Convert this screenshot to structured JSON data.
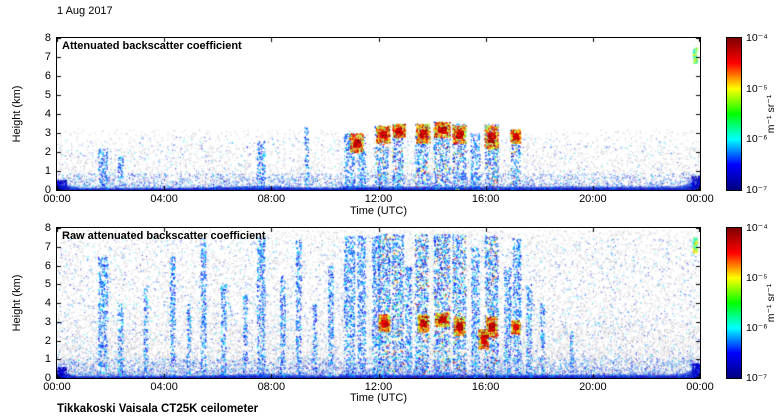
{
  "date_label": "1 Aug 2017",
  "footer": "Tikkakoski Vaisala CT25K ceilometer",
  "colormap": [
    "#7f0000",
    "#ff0000",
    "#ffff00",
    "#00ff00",
    "#00ffff",
    "#0000ff",
    "#00007f"
  ],
  "chart_data": [
    {
      "type": "heatmap",
      "title": "Attenuated backscatter coefficient",
      "xlabel": "Time (UTC)",
      "ylabel": "Height (km)",
      "x_ticks": [
        "00:00",
        "04:00",
        "08:00",
        "12:00",
        "16:00",
        "20:00",
        "00:00"
      ],
      "x_range_hours": [
        0,
        24
      ],
      "y_ticks": [
        "0",
        "1",
        "2",
        "3",
        "4",
        "5",
        "6",
        "7",
        "8"
      ],
      "ylim_km": [
        0,
        8
      ],
      "colorbar": {
        "ticks": [
          "10⁻⁴",
          "10⁻⁵",
          "10⁻⁶",
          "10⁻⁷"
        ],
        "unit": "m⁻¹ sr⁻¹",
        "scale": "log",
        "min": "1e-7",
        "max": "1e-4"
      },
      "features": {
        "seed": 20170801,
        "speckle": [
          {
            "count": 6500,
            "pow": 3.0,
            "maxH": 3.2
          },
          {
            "count": 1200,
            "pow": 1.6,
            "maxH": 2.4
          }
        ],
        "blue_dots": {
          "count": 700,
          "maxH": 2.8
        },
        "surface": {
          "base": 0.08,
          "bump_center": 7.5,
          "bump_amp": 0.1,
          "late_step": 0.08,
          "edge_left": 0.28,
          "edge_right": 0.38
        },
        "low_fringe": {
          "count": 2600,
          "maxH": 0.8
        },
        "streaks": [
          {
            "t": 1.7,
            "w": 0.35,
            "top": 2.2
          },
          {
            "t": 2.35,
            "w": 0.2,
            "top": 1.8
          },
          {
            "t": 7.6,
            "w": 0.3,
            "top": 2.6
          },
          {
            "t": 9.3,
            "w": 0.15,
            "top": 3.3
          },
          {
            "t": 10.9,
            "w": 0.4,
            "top": 3.0
          },
          {
            "t": 11.35,
            "w": 0.3,
            "top": 2.8
          },
          {
            "t": 12.1,
            "w": 0.5,
            "top": 3.4,
            "colorful": true
          },
          {
            "t": 12.7,
            "w": 0.4,
            "top": 3.5,
            "colorful": true
          },
          {
            "t": 13.6,
            "w": 0.5,
            "top": 3.5,
            "colorful": true
          },
          {
            "t": 14.35,
            "w": 0.6,
            "top": 3.6,
            "colorful": true
          },
          {
            "t": 15.0,
            "w": 0.5,
            "top": 3.5,
            "colorful": true
          },
          {
            "t": 15.6,
            "w": 0.35,
            "top": 3.0
          },
          {
            "t": 16.2,
            "w": 0.5,
            "top": 3.5,
            "colorful": true
          },
          {
            "t": 17.1,
            "w": 0.35,
            "top": 3.2,
            "colorful": true
          },
          {
            "t": 0.15,
            "w": 0.35,
            "top": 0.55,
            "dark": true,
            "d": 3
          },
          {
            "t": 23.85,
            "w": 0.35,
            "top": 0.75,
            "dark": true,
            "d": 3
          }
        ],
        "clouds": [
          {
            "t": 11.15,
            "w": 0.5,
            "base": 2.0,
            "top": 3.0
          },
          {
            "t": 12.15,
            "w": 0.5,
            "base": 2.5,
            "top": 3.4
          },
          {
            "t": 12.75,
            "w": 0.45,
            "base": 2.8,
            "top": 3.5
          },
          {
            "t": 13.65,
            "w": 0.5,
            "base": 2.5,
            "top": 3.5
          },
          {
            "t": 14.35,
            "w": 0.6,
            "base": 2.8,
            "top": 3.6
          },
          {
            "t": 15.0,
            "w": 0.5,
            "base": 2.5,
            "top": 3.4
          },
          {
            "t": 16.2,
            "w": 0.5,
            "base": 2.2,
            "top": 3.4
          },
          {
            "t": 17.1,
            "w": 0.35,
            "base": 2.5,
            "top": 3.2
          }
        ],
        "blob": {
          "t": 23.8,
          "base": 6.7,
          "top": 7.5
        }
      }
    },
    {
      "type": "heatmap",
      "title": "Raw attenuated backscatter coefficient",
      "xlabel": "Time (UTC)",
      "ylabel": "Height (km)",
      "x_ticks": [
        "00:00",
        "04:00",
        "08:00",
        "12:00",
        "16:00",
        "20:00",
        "00:00"
      ],
      "x_range_hours": [
        0,
        24
      ],
      "y_ticks": [
        "0",
        "1",
        "2",
        "3",
        "4",
        "5",
        "6",
        "7",
        "8"
      ],
      "ylim_km": [
        0,
        8
      ],
      "colorbar": {
        "ticks": [
          "10⁻⁴",
          "10⁻⁵",
          "10⁻⁶",
          "10⁻⁷"
        ],
        "unit": "m⁻¹ sr⁻¹",
        "scale": "log",
        "min": "1e-7",
        "max": "1e-4"
      },
      "features": {
        "seed": 31415926,
        "speckle": [
          {
            "count": 15000,
            "pow": 1.5,
            "maxH": 7.9
          },
          {
            "count": 7000,
            "pow": 2.8,
            "maxH": 3.2
          }
        ],
        "blue_dots": {
          "count": 2500,
          "maxH": 7.5
        },
        "surface": {
          "base": 0.08,
          "bump_center": 7.5,
          "bump_amp": 0.1,
          "late_step": 0.08,
          "edge_left": 0.28,
          "edge_right": 0.38
        },
        "low_fringe": {
          "count": 3500,
          "maxH": 1.0
        },
        "streaks": [
          {
            "t": 1.7,
            "w": 0.35,
            "top": 6.5
          },
          {
            "t": 2.35,
            "w": 0.2,
            "top": 4.0
          },
          {
            "t": 3.3,
            "w": 0.15,
            "top": 5.0
          },
          {
            "t": 4.3,
            "w": 0.2,
            "top": 6.5
          },
          {
            "t": 4.9,
            "w": 0.15,
            "top": 4.0
          },
          {
            "t": 5.45,
            "w": 0.2,
            "top": 7.5
          },
          {
            "t": 6.2,
            "w": 0.2,
            "top": 5.0
          },
          {
            "t": 7.0,
            "w": 0.15,
            "top": 4.5
          },
          {
            "t": 7.6,
            "w": 0.3,
            "top": 7.5
          },
          {
            "t": 8.4,
            "w": 0.2,
            "top": 5.5
          },
          {
            "t": 9.0,
            "w": 0.2,
            "top": 7.5
          },
          {
            "t": 9.6,
            "w": 0.15,
            "top": 4.0
          },
          {
            "t": 10.2,
            "w": 0.2,
            "top": 6.0
          },
          {
            "t": 10.9,
            "w": 0.4,
            "top": 7.6
          },
          {
            "t": 11.35,
            "w": 0.3,
            "top": 7.6
          },
          {
            "t": 11.9,
            "w": 0.3,
            "top": 7.6
          },
          {
            "t": 12.2,
            "w": 0.45,
            "top": 7.7,
            "colorful": true
          },
          {
            "t": 12.7,
            "w": 0.45,
            "top": 7.7,
            "colorful": true
          },
          {
            "t": 13.1,
            "w": 0.25,
            "top": 6.0
          },
          {
            "t": 13.6,
            "w": 0.5,
            "top": 7.7,
            "colorful": true
          },
          {
            "t": 14.35,
            "w": 0.6,
            "top": 7.7,
            "colorful": true
          },
          {
            "t": 15.0,
            "w": 0.5,
            "top": 7.7,
            "colorful": true
          },
          {
            "t": 15.6,
            "w": 0.3,
            "top": 7.0
          },
          {
            "t": 16.2,
            "w": 0.5,
            "top": 7.7,
            "colorful": true
          },
          {
            "t": 16.8,
            "w": 0.25,
            "top": 6.0
          },
          {
            "t": 17.15,
            "w": 0.3,
            "top": 7.5
          },
          {
            "t": 17.6,
            "w": 0.2,
            "top": 5.0
          },
          {
            "t": 18.1,
            "w": 0.15,
            "top": 4.0
          },
          {
            "t": 19.2,
            "w": 0.12,
            "top": 2.5
          },
          {
            "t": 0.15,
            "w": 0.35,
            "top": 0.6,
            "dark": true,
            "d": 3
          },
          {
            "t": 23.85,
            "w": 0.35,
            "top": 0.8,
            "dark": true,
            "d": 3
          }
        ],
        "clouds": [
          {
            "t": 12.2,
            "w": 0.4,
            "base": 2.5,
            "top": 3.4
          },
          {
            "t": 13.65,
            "w": 0.4,
            "base": 2.5,
            "top": 3.4
          },
          {
            "t": 14.35,
            "w": 0.5,
            "base": 2.8,
            "top": 3.5
          },
          {
            "t": 15.0,
            "w": 0.4,
            "base": 2.3,
            "top": 3.3
          },
          {
            "t": 15.9,
            "w": 0.35,
            "base": 1.6,
            "top": 2.6
          },
          {
            "t": 16.2,
            "w": 0.4,
            "base": 2.2,
            "top": 3.3
          },
          {
            "t": 17.1,
            "w": 0.3,
            "base": 2.4,
            "top": 3.1
          }
        ],
        "blob": {
          "t": 23.8,
          "base": 6.7,
          "top": 7.5
        }
      }
    }
  ]
}
